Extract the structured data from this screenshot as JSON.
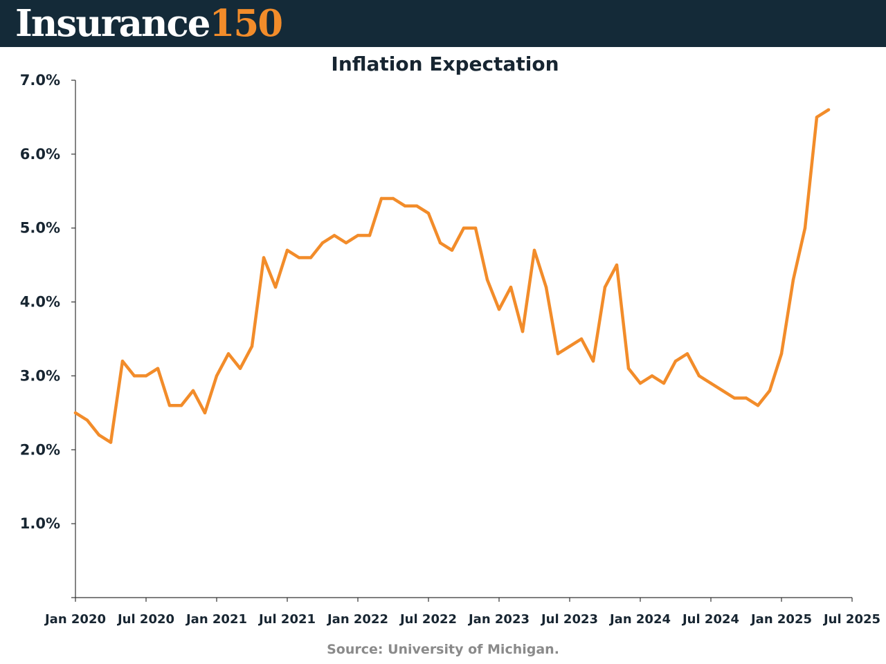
{
  "header": {
    "brand_word": "Insurance",
    "brand_number": "150",
    "background_color": "#142a38",
    "accent_color": "#f28c2a"
  },
  "footer": {
    "source": "Source: University of Michigan."
  },
  "chart_data": {
    "type": "line",
    "title": "Inflation Expectation",
    "xlabel": "",
    "ylabel": "",
    "ylim": [
      0,
      7
    ],
    "xlim": [
      "2020-01",
      "2025-07"
    ],
    "y_ticks": [
      {
        "value": 1,
        "label": "1.0%"
      },
      {
        "value": 2,
        "label": "2.0%"
      },
      {
        "value": 3,
        "label": "3.0%"
      },
      {
        "value": 4,
        "label": "4.0%"
      },
      {
        "value": 5,
        "label": "5.0%"
      },
      {
        "value": 6,
        "label": "6.0%"
      },
      {
        "value": 7,
        "label": "7.0%"
      }
    ],
    "x_ticks": [
      {
        "date": "2020-01",
        "label": "Jan 2020"
      },
      {
        "date": "2020-07",
        "label": "Jul 2020"
      },
      {
        "date": "2021-01",
        "label": "Jan 2021"
      },
      {
        "date": "2021-07",
        "label": "Jul 2021"
      },
      {
        "date": "2022-01",
        "label": "Jan 2022"
      },
      {
        "date": "2022-07",
        "label": "Jul 2022"
      },
      {
        "date": "2023-01",
        "label": "Jan 2023"
      },
      {
        "date": "2023-07",
        "label": "Jul 2023"
      },
      {
        "date": "2024-01",
        "label": "Jan 2024"
      },
      {
        "date": "2024-07",
        "label": "Jul 2024"
      },
      {
        "date": "2025-01",
        "label": "Jan 2025"
      },
      {
        "date": "2025-07",
        "label": "Jul 2025"
      }
    ],
    "grid": false,
    "legend": "none",
    "series": [
      {
        "color": "#f28c2a",
        "x": [
          "2020-01",
          "2020-02",
          "2020-03",
          "2020-04",
          "2020-05",
          "2020-06",
          "2020-07",
          "2020-08",
          "2020-09",
          "2020-10",
          "2020-11",
          "2020-12",
          "2021-01",
          "2021-02",
          "2021-03",
          "2021-04",
          "2021-05",
          "2021-06",
          "2021-07",
          "2021-08",
          "2021-09",
          "2021-10",
          "2021-11",
          "2021-12",
          "2022-01",
          "2022-02",
          "2022-03",
          "2022-04",
          "2022-05",
          "2022-06",
          "2022-07",
          "2022-08",
          "2022-09",
          "2022-10",
          "2022-11",
          "2022-12",
          "2023-01",
          "2023-02",
          "2023-03",
          "2023-04",
          "2023-05",
          "2023-06",
          "2023-07",
          "2023-08",
          "2023-09",
          "2023-10",
          "2023-11",
          "2023-12",
          "2024-01",
          "2024-02",
          "2024-03",
          "2024-04",
          "2024-05",
          "2024-06",
          "2024-07",
          "2024-08",
          "2024-09",
          "2024-10",
          "2024-11",
          "2024-12",
          "2025-01",
          "2025-02",
          "2025-03",
          "2025-04",
          "2025-05"
        ],
        "values": [
          2.5,
          2.4,
          2.2,
          2.1,
          3.2,
          3.0,
          3.0,
          3.1,
          2.6,
          2.6,
          2.8,
          2.5,
          3.0,
          3.3,
          3.1,
          3.4,
          4.6,
          4.2,
          4.7,
          4.6,
          4.6,
          4.8,
          4.9,
          4.8,
          4.9,
          4.9,
          5.4,
          5.4,
          5.3,
          5.3,
          5.2,
          4.8,
          4.7,
          5.0,
          5.0,
          4.3,
          3.9,
          4.2,
          3.6,
          4.7,
          4.2,
          3.3,
          3.4,
          3.5,
          3.2,
          4.2,
          4.5,
          3.1,
          2.9,
          3.0,
          2.9,
          3.2,
          3.3,
          3.0,
          2.9,
          2.8,
          2.7,
          2.7,
          2.6,
          2.8,
          3.3,
          4.3,
          5.0,
          6.5,
          6.6
        ]
      }
    ]
  }
}
